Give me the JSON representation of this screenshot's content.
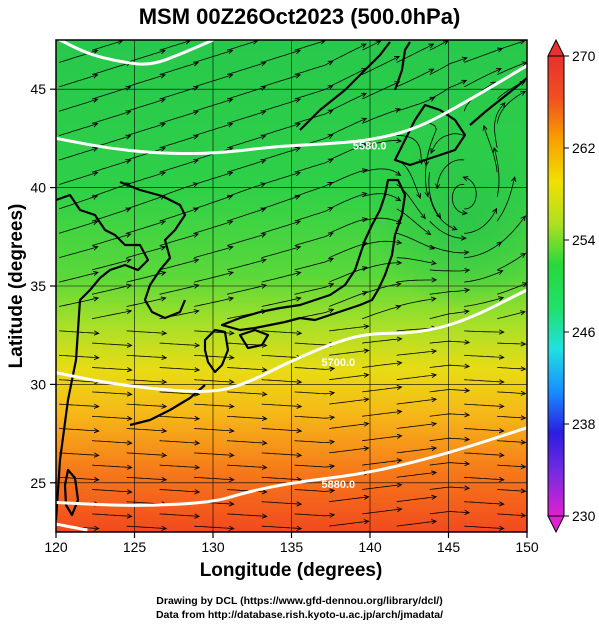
{
  "title": "MSM 00Z26Oct2023 (500.0hPa)",
  "xlabel": "Longitude (degrees)",
  "ylabel": "Latitude  (degrees)",
  "xticks": [
    "120",
    "125",
    "130",
    "135",
    "140",
    "145",
    "150"
  ],
  "xtick_values": [
    120,
    125,
    130,
    135,
    140,
    145,
    150
  ],
  "yticks": [
    "25",
    "30",
    "35",
    "40",
    "45"
  ],
  "ytick_values": [
    25,
    30,
    35,
    40,
    45
  ],
  "xlim": [
    120,
    150
  ],
  "ylim": [
    22.5,
    47.5
  ],
  "colorbar": {
    "ticks": [
      "270",
      "262",
      "254",
      "246",
      "238",
      "230"
    ],
    "tick_values": [
      270,
      262,
      254,
      246,
      238,
      230
    ],
    "range": [
      230,
      270
    ],
    "colors": [
      "#e020d0",
      "#7a2be0",
      "#2a1ee0",
      "#1890ff",
      "#20e0e0",
      "#20e068",
      "#28d83c",
      "#b0e020",
      "#f0e000",
      "#f8a000",
      "#f05020",
      "#e83030"
    ]
  },
  "contours": [
    {
      "label": "5880.0",
      "points": [
        [
          120,
          24
        ],
        [
          125,
          23.8
        ],
        [
          130,
          24
        ],
        [
          132,
          24.5
        ],
        [
          135,
          25
        ],
        [
          140,
          25.5
        ],
        [
          145,
          26.5
        ],
        [
          150,
          27.8
        ]
      ]
    },
    {
      "label": "5700.0",
      "points": [
        [
          120,
          30.6
        ],
        [
          123,
          30.1
        ],
        [
          127,
          29.7
        ],
        [
          130,
          29.6
        ],
        [
          132,
          30
        ],
        [
          135,
          31.2
        ],
        [
          138,
          32.2
        ],
        [
          140,
          32.6
        ],
        [
          143,
          32.6
        ],
        [
          146,
          33.2
        ],
        [
          150,
          34.8
        ]
      ]
    },
    {
      "label": "5580.0",
      "points": [
        [
          120,
          42.5
        ],
        [
          124,
          41.9
        ],
        [
          128,
          41.7
        ],
        [
          131,
          41.8
        ],
        [
          134,
          42.1
        ],
        [
          137,
          42.2
        ],
        [
          140,
          42.4
        ],
        [
          143,
          43
        ],
        [
          146,
          44.3
        ],
        [
          150,
          46.2
        ]
      ]
    },
    {
      "label": "",
      "points": [
        [
          120,
          47.6
        ],
        [
          122,
          46.8
        ],
        [
          124,
          46.4
        ],
        [
          126,
          46.2
        ],
        [
          128,
          46.8
        ],
        [
          130,
          47.5
        ]
      ]
    },
    {
      "label": "",
      "points": [
        [
          120,
          22.9
        ],
        [
          122,
          22.6
        ]
      ]
    }
  ],
  "chart_data": {
    "type": "map",
    "title": "MSM 00Z26Oct2023 (500.0hPa)",
    "xlabel": "Longitude (degrees)",
    "ylabel": "Latitude  (degrees)",
    "xlim": [
      120,
      150
    ],
    "ylim": [
      22.5,
      47.5
    ],
    "colorbar_range": [
      230,
      270
    ],
    "contour_labels": [
      "5580.0",
      "5700.0",
      "5880.0"
    ]
  },
  "credits": {
    "line1": "Drawing by DCL (https://www.gfd-dennou.org/library/dcl/)",
    "line2": "Data from http://database.rish.kyoto-u.ac.jp/arch/jmadata/"
  }
}
